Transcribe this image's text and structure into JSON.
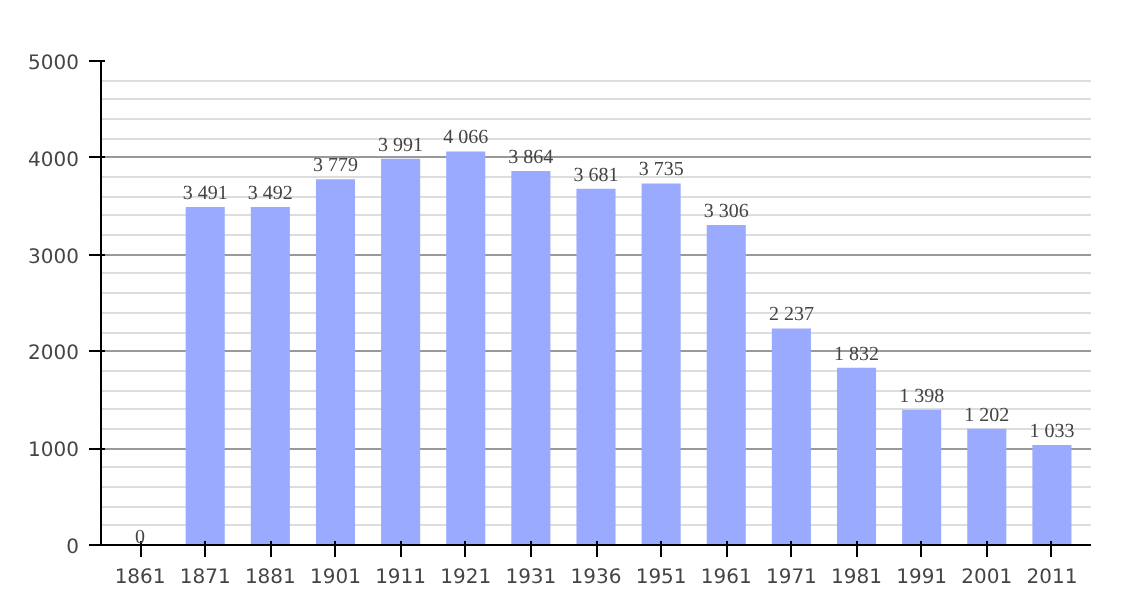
{
  "chart_data": {
    "type": "bar",
    "categories": [
      "1861",
      "1871",
      "1881",
      "1901",
      "1911",
      "1921",
      "1931",
      "1936",
      "1951",
      "1961",
      "1971",
      "1981",
      "1991",
      "2001",
      "2011"
    ],
    "values": [
      0,
      3491,
      3492,
      3779,
      3991,
      4066,
      3864,
      3681,
      3735,
      3306,
      2237,
      1832,
      1398,
      1202,
      1033
    ],
    "value_labels": [
      "0",
      "3 491",
      "3 492",
      "3 779",
      "3 991",
      "4 066",
      "3 864",
      "3 681",
      "3 735",
      "3 306",
      "2 237",
      "1 832",
      "1 398",
      "1 202",
      "1 033"
    ],
    "color": "#99aaff",
    "ylim": [
      0,
      5000
    ],
    "yticks": [
      0,
      1000,
      2000,
      3000,
      4000,
      5000
    ],
    "grid": "y"
  }
}
